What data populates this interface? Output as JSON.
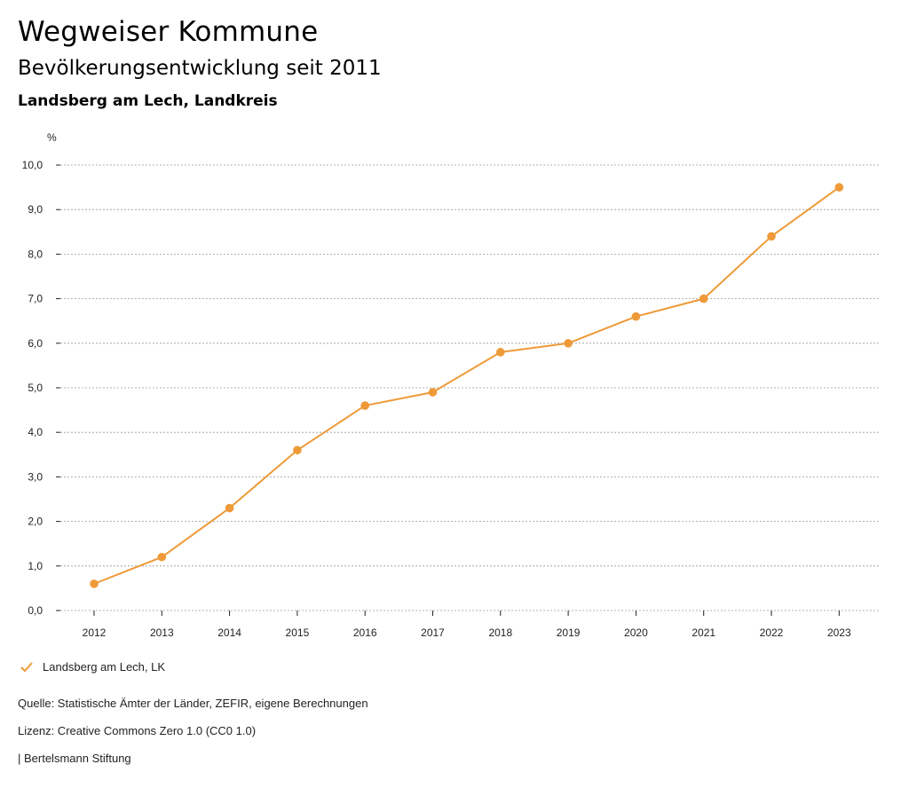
{
  "header": {
    "title": "Wegweiser Kommune",
    "subtitle": "Bevölkerungsentwicklung seit 2011",
    "region": "Landsberg am Lech, Landkreis"
  },
  "colors": {
    "series": "#ee9a38",
    "grid": "#9a9a9a",
    "axis": "#222222"
  },
  "chart_data": {
    "type": "line",
    "title": "Bevölkerungsentwicklung seit 2011",
    "ylabel": "%",
    "xlabel": "",
    "ylim": [
      0,
      10
    ],
    "yticks": [
      0,
      1,
      2,
      3,
      4,
      5,
      6,
      7,
      8,
      9,
      10
    ],
    "ytick_labels": [
      "0,0",
      "1,0",
      "2,0",
      "3,0",
      "4,0",
      "5,0",
      "6,0",
      "7,0",
      "8,0",
      "9,0",
      "10,0"
    ],
    "categories": [
      "2012",
      "2013",
      "2014",
      "2015",
      "2016",
      "2017",
      "2018",
      "2019",
      "2020",
      "2021",
      "2022",
      "2023"
    ],
    "series": [
      {
        "name": "Landsberg am Lech, LK",
        "values": [
          0.6,
          1.2,
          2.3,
          3.6,
          4.6,
          4.9,
          5.8,
          6.0,
          6.6,
          7.0,
          8.4,
          9.5
        ]
      }
    ],
    "grid": true,
    "legend": "bottom-left"
  },
  "legend": {
    "label": "Landsberg am Lech, LK"
  },
  "footer": {
    "source": "Quelle: Statistische Ämter der Länder, ZEFIR, eigene Berechnungen",
    "license": "Lizenz: Creative Commons Zero 1.0 (CC0 1.0)",
    "brand": "| Bertelsmann Stiftung"
  }
}
